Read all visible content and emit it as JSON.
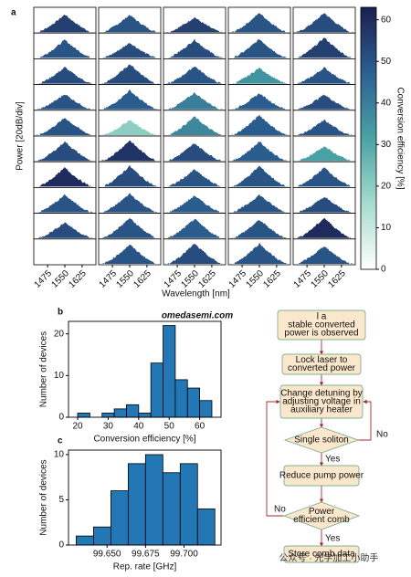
{
  "chart_data": [
    {
      "type": "spectra-grid",
      "panel_label": "a",
      "ylabel": "Power [20dB/div]",
      "xlabel": "Wavelength [nm]",
      "xlim": [
        1415,
        1685
      ],
      "xticks": [
        1475,
        1550,
        1625
      ],
      "values": [
        [
          55,
          50,
          55,
          50,
          52
        ],
        [
          50,
          52,
          52,
          50,
          55
        ],
        [
          52,
          52,
          50,
          35,
          50
        ],
        [
          50,
          48,
          40,
          48,
          52
        ],
        [
          50,
          20,
          38,
          48,
          50
        ],
        [
          52,
          58,
          52,
          48,
          32
        ],
        [
          60,
          52,
          50,
          50,
          50
        ],
        [
          50,
          50,
          48,
          50,
          52
        ],
        [
          52,
          50,
          48,
          50,
          60
        ],
        [
          null,
          50,
          52,
          50,
          50
        ]
      ],
      "colorbar": {
        "label": "Conversion efficiency [%]",
        "lim": [
          0,
          63
        ],
        "ticks": [
          0,
          10,
          20,
          30,
          40,
          50,
          60
        ],
        "colormap": [
          "#ffffff",
          "#a6dccc",
          "#4aa3a6",
          "#2c5f91",
          "#1b1f50"
        ]
      }
    },
    {
      "type": "histogram",
      "panel_label": "b",
      "xlabel": "Conversion efficiency [%]",
      "ylabel": "Number of devices",
      "color": "#2277b4",
      "bins": [
        20,
        24,
        28,
        32,
        36,
        40,
        44,
        48,
        52,
        56,
        60,
        64
      ],
      "values": [
        1,
        0,
        1,
        2,
        3,
        1,
        13,
        22,
        9,
        7,
        4
      ],
      "xlim": [
        17,
        67
      ],
      "xticks": [
        20,
        30,
        40,
        50,
        60
      ],
      "ylim": [
        0,
        23
      ],
      "yticks": [
        0,
        10,
        20
      ]
    },
    {
      "type": "histogram",
      "panel_label": "c",
      "xlabel": "Rep. rate [GHz]",
      "ylabel": "Number of devices",
      "color": "#2277b4",
      "bins": [
        99.63,
        99.64125,
        99.6525,
        99.66375,
        99.675,
        99.68625,
        99.6975,
        99.70875,
        99.72
      ],
      "values": [
        1,
        2,
        6,
        9,
        10,
        8,
        9,
        4
      ],
      "xlim": [
        99.625,
        99.724
      ],
      "xticks": [
        {
          "value": 99.65,
          "label": "99.650"
        },
        {
          "value": 99.675,
          "label": "99.675"
        },
        {
          "value": 99.7,
          "label": "99.700"
        }
      ],
      "ylim": [
        0,
        10.5
      ],
      "yticks": [
        0,
        5,
        10
      ]
    }
  ],
  "flowchart": {
    "nodes": [
      {
        "lines": [
          "l a",
          "stable converted",
          "power is observed"
        ]
      },
      {
        "lines": [
          "Lock laser to",
          "converted power"
        ]
      },
      {
        "lines": [
          "Change detuning by",
          "adjusting voltage in",
          "auxiliary heater"
        ]
      },
      {
        "lines": [
          "Single soliton"
        ]
      },
      {
        "lines": [
          "Reduce pump power"
        ]
      },
      {
        "lines": [
          "Power",
          "efficient comb"
        ]
      },
      {
        "lines": [
          "Store comb data"
        ]
      }
    ],
    "edge_labels": [
      "No",
      "Yes",
      "No",
      "Yes"
    ]
  },
  "watermarks": [
    "omedasemi.com",
    "公众号 · 光学加工小助手"
  ]
}
